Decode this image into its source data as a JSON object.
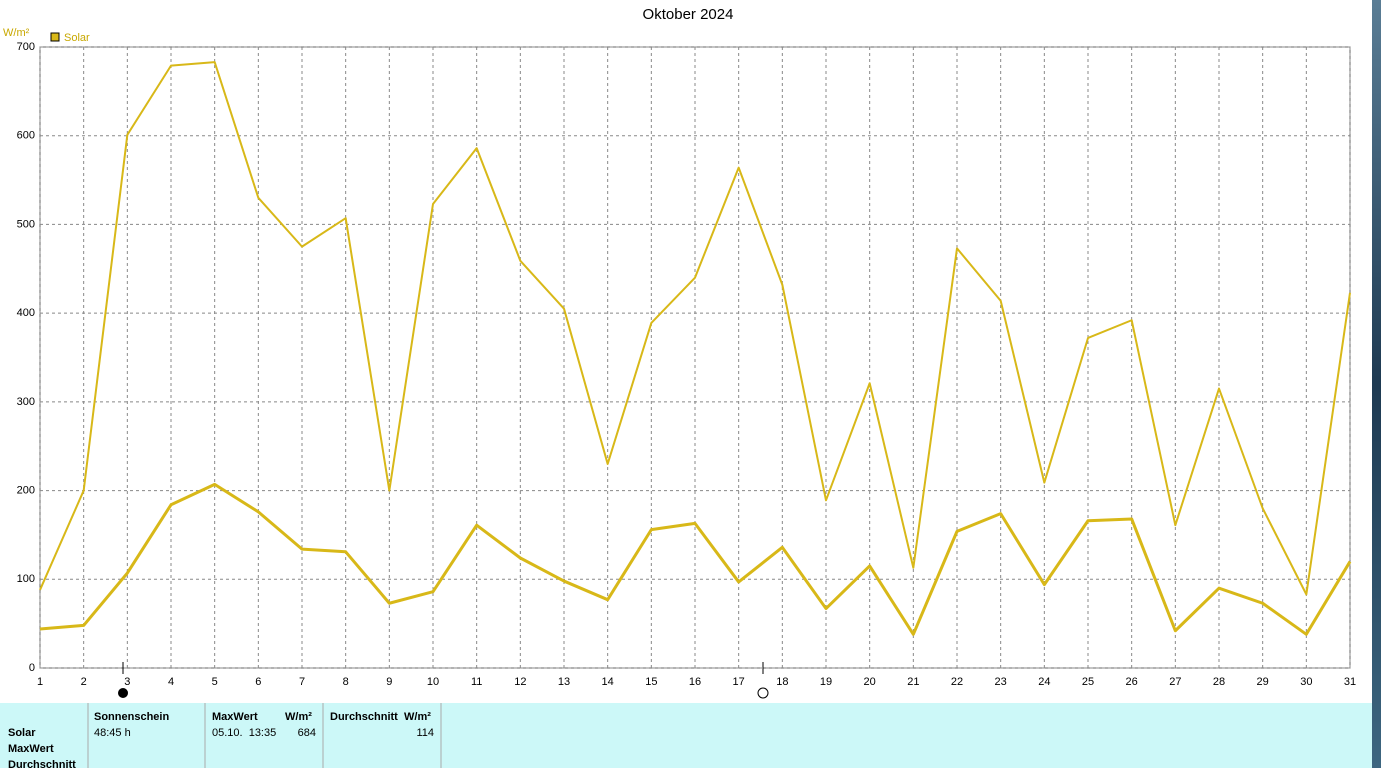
{
  "chart_data": {
    "type": "line",
    "title": "Oktober 2024",
    "y_label": "W/m²",
    "x": [
      1,
      2,
      3,
      4,
      5,
      6,
      7,
      8,
      9,
      10,
      11,
      12,
      13,
      14,
      15,
      16,
      17,
      18,
      19,
      20,
      21,
      22,
      23,
      24,
      25,
      26,
      27,
      28,
      29,
      30,
      31
    ],
    "xlim": [
      1,
      31
    ],
    "xticks": [
      1,
      2,
      3,
      4,
      5,
      6,
      7,
      8,
      9,
      10,
      11,
      12,
      13,
      14,
      15,
      16,
      17,
      18,
      19,
      20,
      21,
      22,
      23,
      24,
      25,
      26,
      27,
      28,
      29,
      30,
      31
    ],
    "ylim": [
      0,
      700
    ],
    "yticks": [
      0,
      100,
      200,
      300,
      400,
      500,
      600,
      700
    ],
    "grid": true,
    "series": [
      {
        "name": "Solar",
        "color": "#d8b818",
        "values": [
          88,
          200,
          601,
          679,
          683,
          530,
          475,
          507,
          200,
          523,
          586,
          459,
          405,
          230,
          389,
          440,
          564,
          432,
          189,
          321,
          113,
          473,
          414,
          209,
          372,
          392,
          161,
          315,
          180,
          83,
          423
        ]
      },
      {
        "color": "#d8b818",
        "values": [
          44,
          48,
          107,
          184,
          207,
          176,
          134,
          131,
          73,
          86,
          161,
          124,
          98,
          77,
          156,
          163,
          97,
          136,
          67,
          115,
          38,
          154,
          174,
          94,
          166,
          168,
          42,
          90,
          73,
          38,
          120
        ]
      }
    ]
  },
  "table": {
    "row_labels": [
      "Solar",
      "MaxWert",
      "Durchschnitt"
    ],
    "headers": [
      "Sonnenschein",
      "MaxWert",
      "W/m²",
      "Durchschnitt",
      "W/m²"
    ],
    "sunshine": "48:45 h",
    "max_time": "05.10.  13:35",
    "max_value": 684,
    "average": 114
  }
}
